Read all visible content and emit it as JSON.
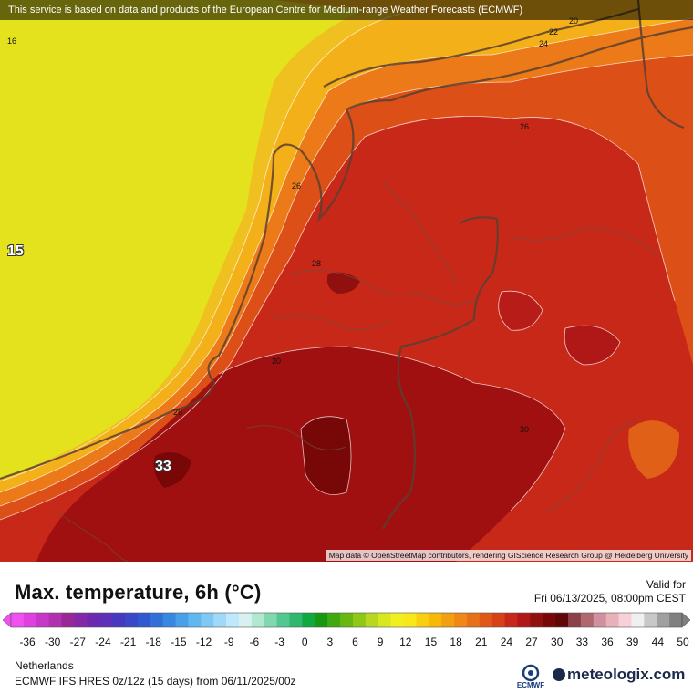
{
  "map": {
    "banner": "This service is based on data and products of the European Centre for Medium-range Weather Forecasts (ECMWF)",
    "attribution": "Map data © OpenStreetMap contributors, rendering GIScience Research Group @ Heidelberg University",
    "contour_labels": [
      "16",
      "20",
      "22",
      "24",
      "26",
      "26",
      "28",
      "30",
      "30",
      "28"
    ],
    "value_labels": [
      "15",
      "33"
    ]
  },
  "legend": {
    "title": "Max. temperature, 6h (°C)",
    "valid_label": "Valid for",
    "valid_time": "Fri 06/13/2025, 08:00pm CEST",
    "ticks": [
      "-36",
      "-30",
      "-27",
      "-24",
      "-21",
      "-18",
      "-15",
      "-12",
      "-9",
      "-6",
      "-3",
      "0",
      "3",
      "6",
      "9",
      "12",
      "15",
      "18",
      "21",
      "24",
      "27",
      "30",
      "33",
      "36",
      "39",
      "44",
      "50"
    ],
    "colors": [
      "#f050f0",
      "#e040e0",
      "#c838c8",
      "#b030b0",
      "#982898",
      "#8428a8",
      "#6c28b0",
      "#5c30b8",
      "#4838c0",
      "#3848c8",
      "#3058d0",
      "#3070d8",
      "#3888e0",
      "#48a0e8",
      "#60b8f0",
      "#80c8f4",
      "#a0d8f8",
      "#c0e8fc",
      "#d8f0f0",
      "#b0e8d0",
      "#80d8b0",
      "#50c890",
      "#30b870",
      "#10a840",
      "#189810",
      "#40a810",
      "#68b810",
      "#90c818",
      "#b8d820",
      "#d8e820",
      "#f0f020",
      "#f8e818",
      "#f8d010",
      "#f8b808",
      "#f0a010",
      "#f08818",
      "#e87018",
      "#e05818",
      "#d84018",
      "#c82818",
      "#b01818",
      "#901010",
      "#780808",
      "#600808",
      "#8c4048",
      "#b06870",
      "#d090a0",
      "#e8b0b8",
      "#f8d0d8",
      "#f0f0f0",
      "#c8c8c8",
      "#a0a0a0",
      "#808080"
    ]
  },
  "footer": {
    "region": "Netherlands",
    "model": "ECMWF IFS HRES 0z/12z (15 days) from  06/11/2025/00z",
    "ecmwf_logo": "ECMWF",
    "brand": "meteologix.com"
  }
}
